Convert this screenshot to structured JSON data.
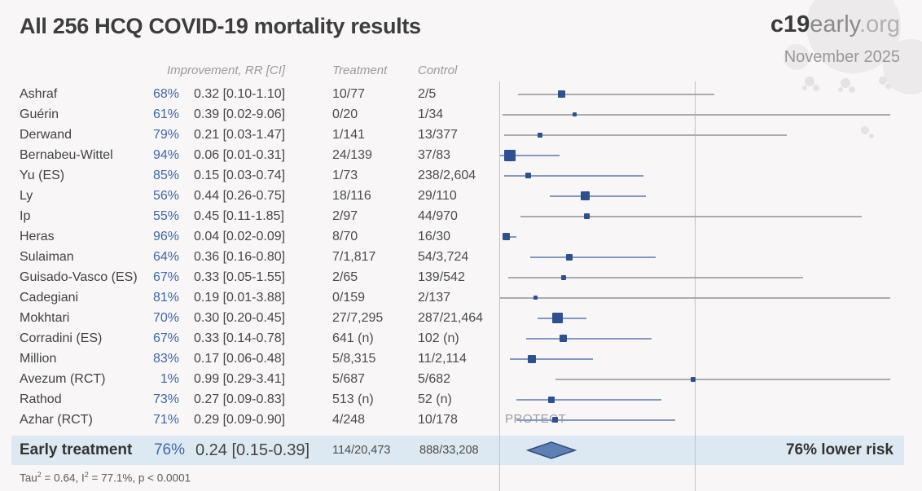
{
  "page": {
    "title": "All 256 HCQ COVID-19 mortality results"
  },
  "brand": {
    "c19": "c19",
    "early": "early",
    "org": ".org",
    "date": "November 2025"
  },
  "table": {
    "headers": {
      "improvement": "Improvement, RR [CI]",
      "treatment": "Treatment",
      "control": "Control"
    }
  },
  "chart_data": {
    "type": "forest",
    "title": "All 256 HCQ COVID-19 mortality results",
    "x_axis": {
      "scale": "linear",
      "range_rr": [
        0,
        2
      ],
      "reference_line_rr": 1,
      "clipped_at_right": true
    },
    "legend_position": "none",
    "grid": "two vertical reference lines (RR=0 axis, RR=1)",
    "studies": [
      {
        "name": "Ashraf",
        "improvement": "68%",
        "rr": 0.32,
        "rr_text": "0.32 [0.10-1.10]",
        "ci_lo": 0.1,
        "ci_hi": 1.1,
        "treatment": "10/77",
        "control": "2/5",
        "weight": 9
      },
      {
        "name": "Guérin",
        "improvement": "61%",
        "rr": 0.39,
        "rr_text": "0.39 [0.02-9.06]",
        "ci_lo": 0.02,
        "ci_hi": 9.06,
        "treatment": "0/20",
        "control": "1/34",
        "weight": 5
      },
      {
        "name": "Derwand",
        "improvement": "79%",
        "rr": 0.21,
        "rr_text": "0.21 [0.03-1.47]",
        "ci_lo": 0.03,
        "ci_hi": 1.47,
        "treatment": "1/141",
        "control": "13/377",
        "weight": 6
      },
      {
        "name": "Bernabeu-Wittel",
        "improvement": "94%",
        "rr": 0.06,
        "rr_text": "0.06 [0.01-0.31]",
        "ci_lo": 0.01,
        "ci_hi": 0.31,
        "treatment": "24/139",
        "control": "37/83",
        "weight": 14
      },
      {
        "name": "Yu (ES)",
        "improvement": "85%",
        "rr": 0.15,
        "rr_text": "0.15 [0.03-0.74]",
        "ci_lo": 0.03,
        "ci_hi": 0.74,
        "treatment": "1/73",
        "control": "238/2,604",
        "weight": 7
      },
      {
        "name": "Ly",
        "improvement": "56%",
        "rr": 0.44,
        "rr_text": "0.44 [0.26-0.75]",
        "ci_lo": 0.26,
        "ci_hi": 0.75,
        "treatment": "18/116",
        "control": "29/110",
        "weight": 11
      },
      {
        "name": "Ip",
        "improvement": "55%",
        "rr": 0.45,
        "rr_text": "0.45 [0.11-1.85]",
        "ci_lo": 0.11,
        "ci_hi": 1.85,
        "treatment": "2/97",
        "control": "44/970",
        "weight": 7
      },
      {
        "name": "Heras",
        "improvement": "96%",
        "rr": 0.04,
        "rr_text": "0.04 [0.02-0.09]",
        "ci_lo": 0.02,
        "ci_hi": 0.09,
        "treatment": "8/70",
        "control": "16/30",
        "weight": 9
      },
      {
        "name": "Sulaiman",
        "improvement": "64%",
        "rr": 0.36,
        "rr_text": "0.36 [0.16-0.80]",
        "ci_lo": 0.16,
        "ci_hi": 0.8,
        "treatment": "7/1,817",
        "control": "54/3,724",
        "weight": 8
      },
      {
        "name": "Guisado-Vasco (ES)",
        "improvement": "67%",
        "rr": 0.33,
        "rr_text": "0.33 [0.05-1.55]",
        "ci_lo": 0.05,
        "ci_hi": 1.55,
        "treatment": "2/65",
        "control": "139/542",
        "weight": 6
      },
      {
        "name": "Cadegiani",
        "improvement": "81%",
        "rr": 0.19,
        "rr_text": "0.19 [0.01-3.88]",
        "ci_lo": 0.01,
        "ci_hi": 3.88,
        "treatment": "0/159",
        "control": "2/137",
        "weight": 5
      },
      {
        "name": "Mokhtari",
        "improvement": "70%",
        "rr": 0.3,
        "rr_text": "0.30 [0.20-0.45]",
        "ci_lo": 0.2,
        "ci_hi": 0.45,
        "treatment": "27/7,295",
        "control": "287/21,464",
        "weight": 13
      },
      {
        "name": "Corradini (ES)",
        "improvement": "67%",
        "rr": 0.33,
        "rr_text": "0.33 [0.14-0.78]",
        "ci_lo": 0.14,
        "ci_hi": 0.78,
        "treatment": "641 (n)",
        "control": "102 (n)",
        "weight": 9
      },
      {
        "name": "Million",
        "improvement": "83%",
        "rr": 0.17,
        "rr_text": "0.17 [0.06-0.48]",
        "ci_lo": 0.06,
        "ci_hi": 0.48,
        "treatment": "5/8,315",
        "control": "11/2,114",
        "weight": 10
      },
      {
        "name": "Avezum (RCT)",
        "improvement": "1%",
        "rr": 0.99,
        "rr_text": "0.99 [0.29-3.41]",
        "ci_lo": 0.29,
        "ci_hi": 3.41,
        "treatment": "5/687",
        "control": "5/682",
        "weight": 6
      },
      {
        "name": "Rathod",
        "improvement": "73%",
        "rr": 0.27,
        "rr_text": "0.27 [0.09-0.83]",
        "ci_lo": 0.09,
        "ci_hi": 0.83,
        "treatment": "513 (n)",
        "control": "52 (n)",
        "weight": 8
      },
      {
        "name": "Azhar (RCT)",
        "improvement": "71%",
        "rr": 0.29,
        "rr_text": "0.29 [0.09-0.90]",
        "ci_lo": 0.09,
        "ci_hi": 0.9,
        "treatment": "4/248",
        "control": "10/178",
        "weight": 7
      }
    ],
    "summary": {
      "name": "Early treatment",
      "improvement": "76%",
      "rr": 0.24,
      "rr_text": "0.24 [0.15-0.39]",
      "ci_lo": 0.15,
      "ci_hi": 0.39,
      "treatment": "114/20,473",
      "control": "888/33,208",
      "risk_label": "76% lower risk"
    },
    "protect_label": "PROTECT"
  },
  "footer": {
    "tau_prefix": "Tau",
    "tau_sup": "2",
    "mid": " = 0.64, I",
    "i_sup": "2",
    "suffix": " = 77.1%, p < 0.0001"
  },
  "colors": {
    "square": "#2b5191",
    "ci_blue": "#8399c2",
    "ci_gray": "#ababab",
    "axis": "#c2c2c2",
    "percent_blue": "#3e68a8",
    "band": "#dde9f2",
    "diamond_fill": "#5d80b5",
    "diamond_stroke": "#2e4d7e"
  }
}
